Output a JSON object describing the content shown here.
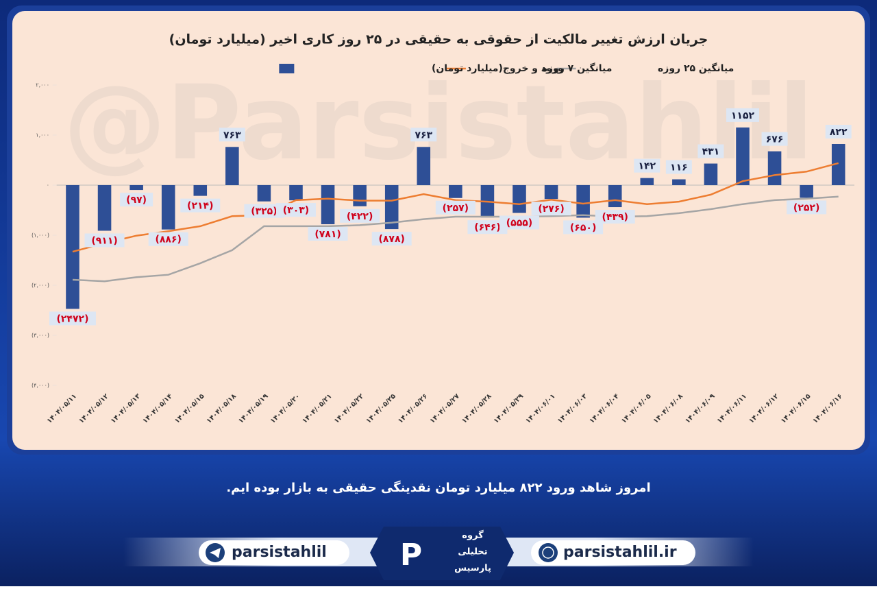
{
  "chart_data": {
    "type": "bar",
    "title": "جریان ارزش تغییر مالکیت از حقوقی به حقیقی در ۲۵ روز کاری اخیر (میلیارد تومان)",
    "watermark": "@Parsistahlil",
    "categories": [
      "۱۴۰۴/۰۵/۱۱",
      "۱۴۰۴/۰۵/۱۲",
      "۱۴۰۴/۰۵/۱۳",
      "۱۴۰۴/۰۵/۱۴",
      "۱۴۰۴/۰۵/۱۵",
      "۱۴۰۴/۰۵/۱۸",
      "۱۴۰۴/۰۵/۱۹",
      "۱۴۰۴/۰۵/۲۰",
      "۱۴۰۴/۰۵/۲۱",
      "۱۴۰۴/۰۵/۲۲",
      "۱۴۰۴/۰۵/۲۵",
      "۱۴۰۴/۰۵/۲۶",
      "۱۴۰۴/۰۵/۲۷",
      "۱۴۰۴/۰۵/۲۸",
      "۱۴۰۴/۰۵/۲۹",
      "۱۴۰۴/۰۶/۰۱",
      "۱۴۰۴/۰۶/۰۳",
      "۱۴۰۴/۰۶/۰۴",
      "۱۴۰۴/۰۶/۰۵",
      "۱۴۰۴/۰۶/۰۸",
      "۱۴۰۴/۰۶/۰۹",
      "۱۴۰۴/۰۶/۱۱",
      "۱۴۰۴/۰۶/۱۲",
      "۱۴۰۴/۰۶/۱۵",
      "۱۴۰۴/۰۶/۱۶"
    ],
    "series": [
      {
        "name": "ورود و خروج(میلیارد تومان)",
        "type": "bar",
        "color": "#2e4f96",
        "values": [
          -2472,
          -911,
          -97,
          -886,
          -214,
          763,
          -325,
          -303,
          -781,
          -422,
          -878,
          763,
          -257,
          -646,
          -555,
          -276,
          -650,
          -439,
          142,
          116,
          431,
          1152,
          676,
          -252,
          822
        ],
        "value_labels": [
          "(۲۴۷۲)",
          "(۹۱۱)",
          "(۹۷)",
          "(۸۸۶)",
          "(۲۱۴)",
          "۷۶۳",
          "(۳۲۵)",
          "(۳۰۳)",
          "(۷۸۱)",
          "(۴۲۲)",
          "(۸۷۸)",
          "۷۶۳",
          "(۲۵۷)",
          "(۶۴۶)",
          "(۵۵۵)",
          "(۲۷۶)",
          "(۶۵۰)",
          "(۴۳۹)",
          "۱۴۲",
          "۱۱۶",
          "۴۳۱",
          "۱۱۵۲",
          "۶۷۶",
          "(۲۵۲)",
          "۸۲۲"
        ]
      },
      {
        "name": "میانگین ۷ روزه",
        "type": "line",
        "color": "#ed7d31",
        "values": [
          -1330,
          -1160,
          -1010,
          -920,
          -820,
          -620,
          -600,
          -300,
          -270,
          -310,
          -310,
          -180,
          -300,
          -330,
          -380,
          -290,
          -370,
          -300,
          -380,
          -330,
          -190,
          80,
          200,
          270,
          440
        ]
      },
      {
        "name": "میانگین ۲۵ روزه",
        "type": "line",
        "color": "#a5a5a5",
        "values": [
          -1890,
          -1920,
          -1840,
          -1790,
          -1560,
          -1300,
          -820,
          -820,
          -820,
          -800,
          -750,
          -680,
          -630,
          -630,
          -630,
          -620,
          -600,
          -630,
          -620,
          -560,
          -480,
          -380,
          -300,
          -270,
          -230
        ]
      }
    ],
    "ylim": [
      -4000,
      2000
    ],
    "yticks": [
      {
        "value": 2000,
        "label": "۲,۰۰۰"
      },
      {
        "value": 1000,
        "label": "۱,۰۰۰"
      },
      {
        "value": 0,
        "label": "۰"
      },
      {
        "value": -1000,
        "label": "(۱,۰۰۰)"
      },
      {
        "value": -2000,
        "label": "(۲,۰۰۰)"
      },
      {
        "value": -3000,
        "label": "(۳,۰۰۰)"
      },
      {
        "value": -4000,
        "label": "(۴,۰۰۰)"
      }
    ],
    "legend": "top"
  },
  "caption": "امروز شاهد ورود ۸۲۲ میلیارد تومان نقدینگی حقیقی به بازار بوده ایم.",
  "footer": {
    "telegram": "parsistahlil",
    "website": "parsistahlil.ir",
    "logo": [
      "گروه",
      "تحلیلی",
      "پارسیس"
    ]
  }
}
